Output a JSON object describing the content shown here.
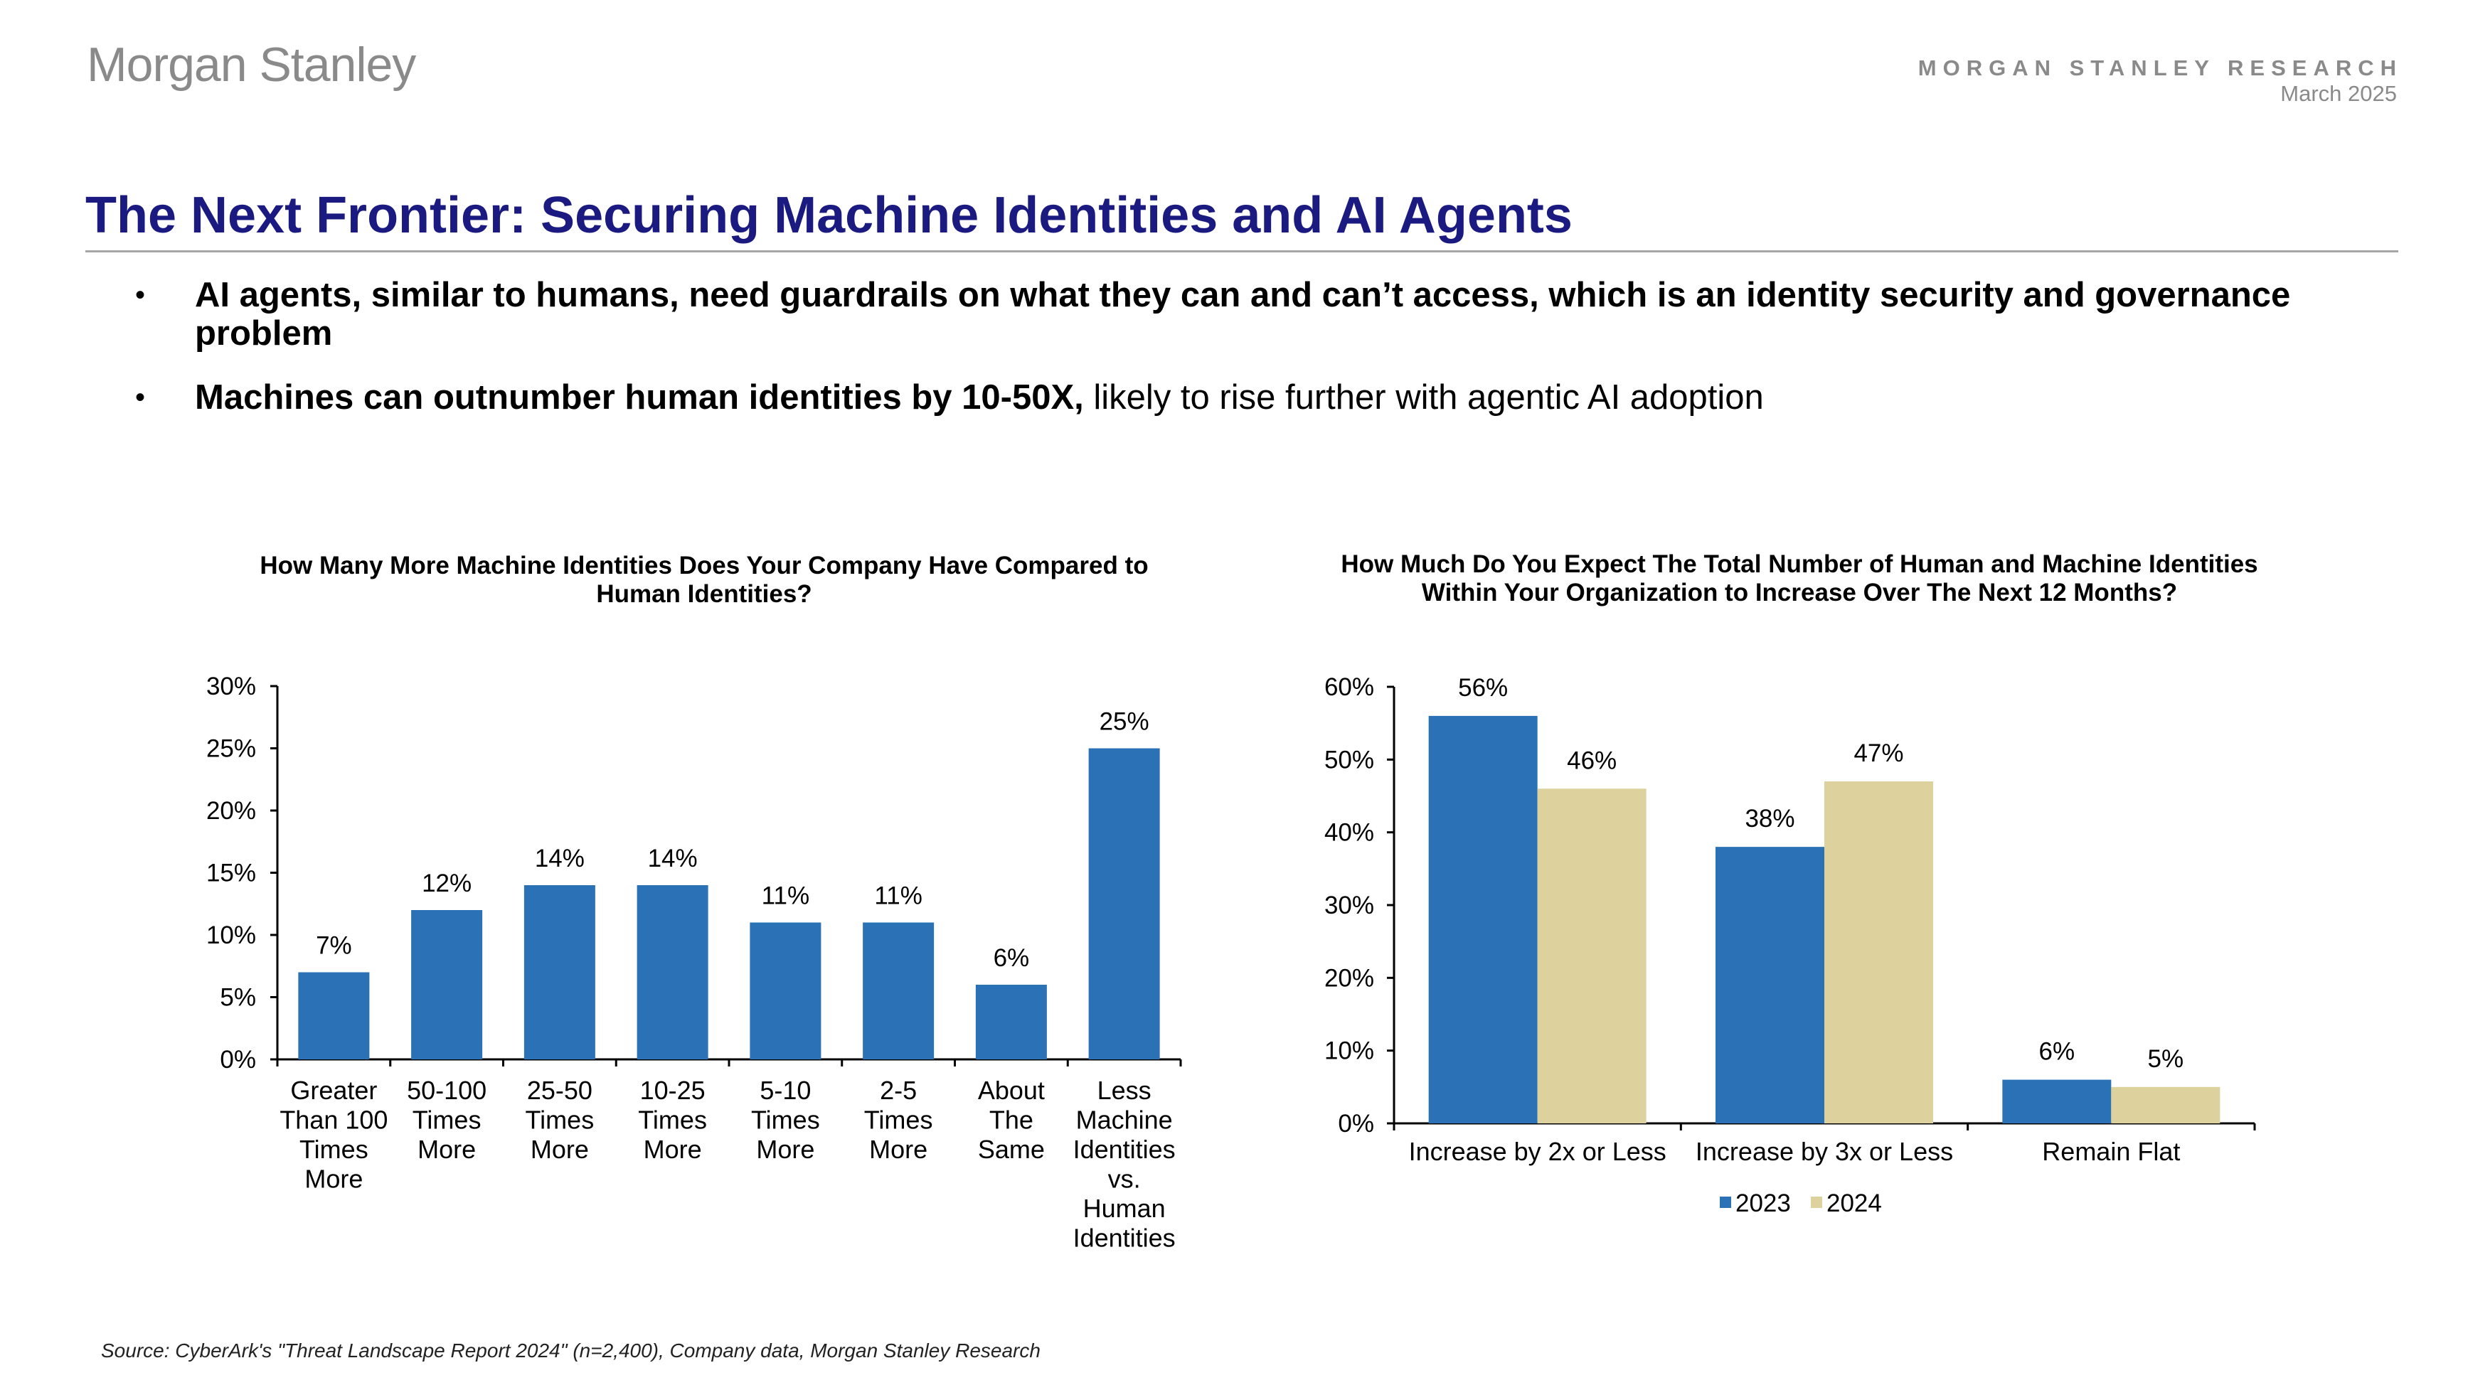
{
  "header": {
    "logo": "Morgan Stanley",
    "research_label": "MORGAN STANLEY RESEARCH",
    "date": "March 2025"
  },
  "title": "The Next Frontier: Securing Machine Identities and AI Agents",
  "bullets": {
    "b1": "AI agents, similar to humans, need guardrails on what they can and can’t access, which is an identity security and governance problem",
    "b2_strong": "Machines can outnumber human identities by 10-50X,",
    "b2_rest": " likely to rise further with agentic AI adoption"
  },
  "colors": {
    "blue": "#2a72b5",
    "tan": "#ddd29d",
    "title": "#1a1a80"
  },
  "chart_data": [
    {
      "type": "bar",
      "title": "How Many More Machine Identities Does Your Company Have Compared to Human Identities?",
      "categories": [
        [
          "Greater",
          "Than 100",
          "Times",
          "More"
        ],
        [
          "50-100",
          "Times",
          "More"
        ],
        [
          "25-50",
          "Times",
          "More"
        ],
        [
          "10-25",
          "Times",
          "More"
        ],
        [
          "5-10",
          "Times",
          "More"
        ],
        [
          "2-5",
          "Times",
          "More"
        ],
        [
          "About",
          "The",
          "Same"
        ],
        [
          "Less",
          "Machine",
          "Identities",
          "vs.",
          "Human",
          "Identities"
        ]
      ],
      "values": [
        7,
        12,
        14,
        14,
        11,
        11,
        6,
        25
      ],
      "value_labels": [
        "7%",
        "12%",
        "14%",
        "14%",
        "11%",
        "11%",
        "6%",
        "25%"
      ],
      "ylim": [
        0,
        30
      ],
      "yticks": [
        "0%",
        "5%",
        "10%",
        "15%",
        "20%",
        "25%",
        "30%"
      ],
      "grid": false
    },
    {
      "type": "bar",
      "title": "How Much Do You Expect The Total Number of Human and Machine Identities Within Your Organization to Increase Over The Next 12 Months?",
      "categories": [
        "Increase by 2x or Less",
        "Increase by 3x or Less",
        "Remain Flat"
      ],
      "series": [
        {
          "name": "2023",
          "values": [
            56,
            38,
            6
          ],
          "labels": [
            "56%",
            "38%",
            "6%"
          ]
        },
        {
          "name": "2024",
          "values": [
            46,
            47,
            5
          ],
          "labels": [
            "46%",
            "47%",
            "5%"
          ]
        }
      ],
      "ylim": [
        0,
        60
      ],
      "yticks": [
        "0%",
        "10%",
        "20%",
        "30%",
        "40%",
        "50%",
        "60%"
      ],
      "legend": "bottom-center",
      "grid": false
    }
  ],
  "source": "Source: CyberArk's \"Threat Landscape Report 2024\" (n=2,400), Company data, Morgan Stanley Research"
}
